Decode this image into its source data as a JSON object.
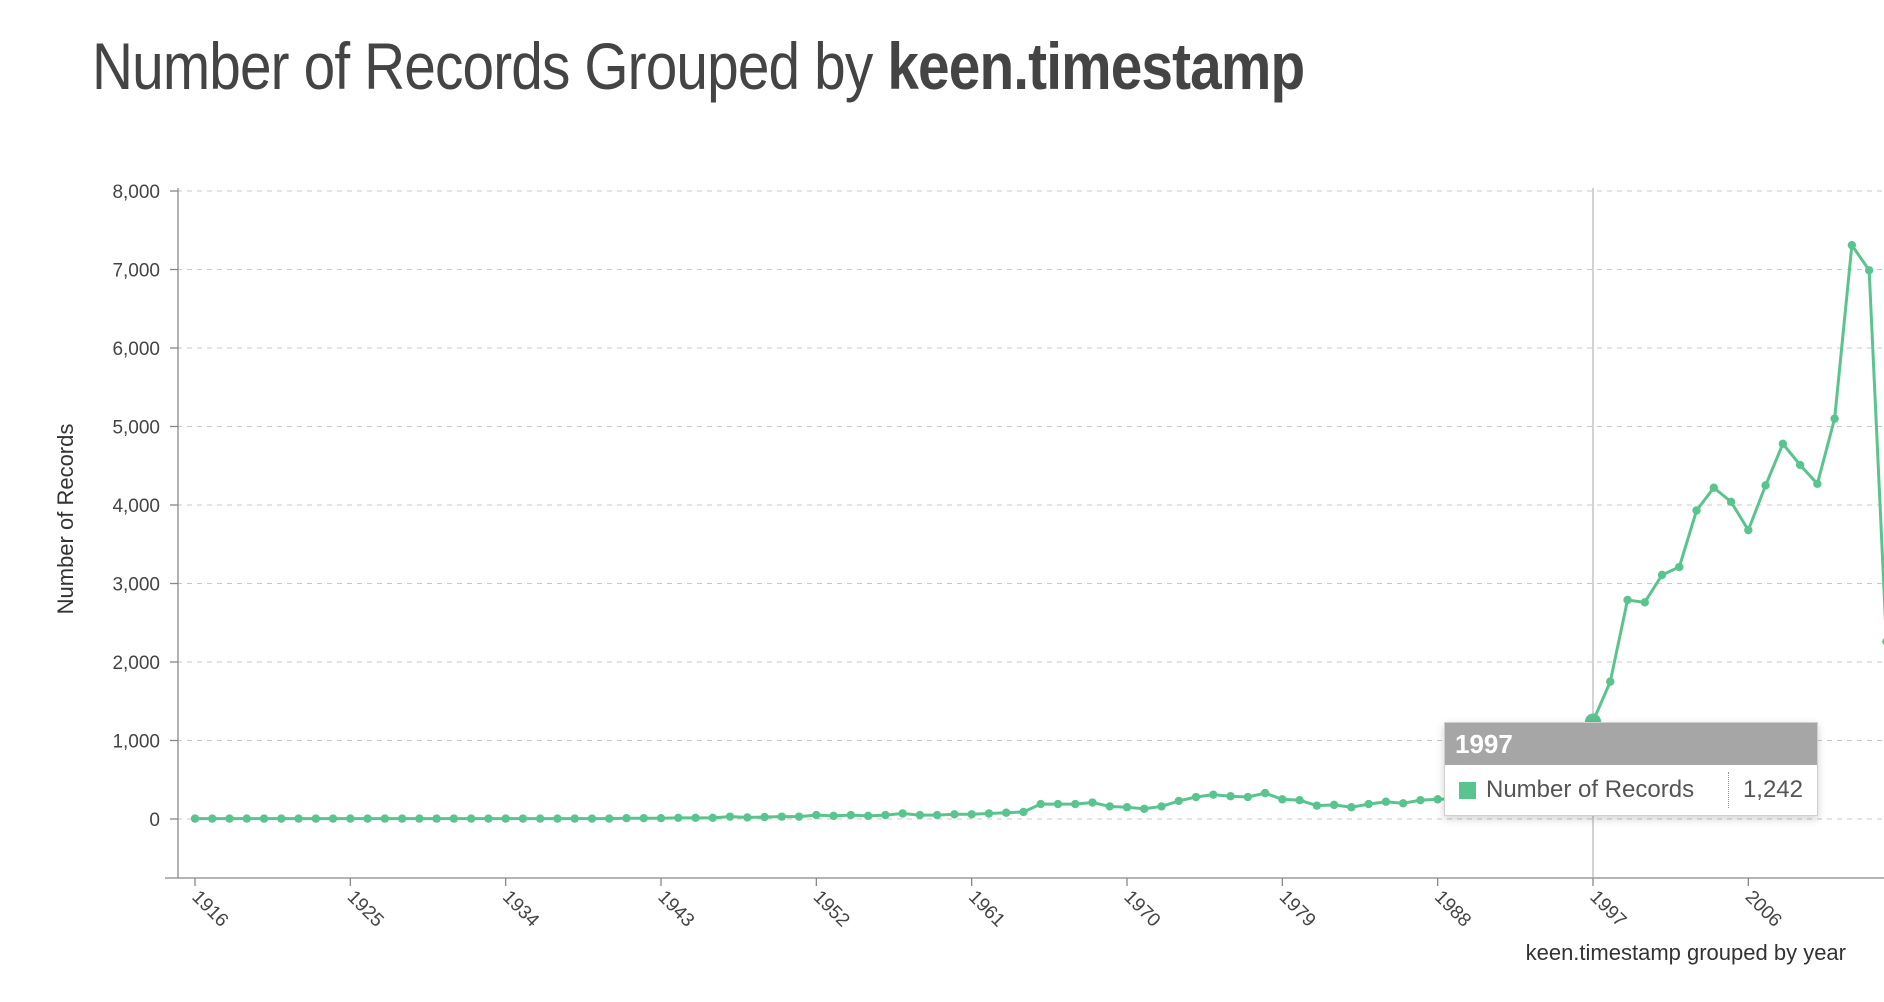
{
  "title": {
    "prefix": "Number of Records Grouped by",
    "bold": "keen.timestamp"
  },
  "colors": {
    "series": "#5ac48e",
    "text": "#444444",
    "tooltip_header": "#a6a6a6"
  },
  "tooltip": {
    "year": "1997",
    "label": "Number of Records",
    "value": "1,242"
  },
  "chart_data": {
    "type": "line",
    "title": "Number of Records Grouped by keen.timestamp",
    "xlabel": "keen.timestamp grouped by year",
    "ylabel": "Number of Records",
    "xlim": [
      1915,
      2015
    ],
    "ylim": [
      -700,
      8000
    ],
    "grid": true,
    "legend": "none",
    "x_ticks": [
      "1916",
      "1925",
      "1934",
      "1943",
      "1952",
      "1961",
      "1970",
      "1979",
      "1988",
      "1997",
      "2006"
    ],
    "y_ticks": [
      "0",
      "1,000",
      "2,000",
      "3,000",
      "4,000",
      "5,000",
      "6,000",
      "7,000",
      "8,000"
    ],
    "y_tick_values": [
      0,
      1000,
      2000,
      3000,
      4000,
      5000,
      6000,
      7000,
      8000
    ],
    "highlight": {
      "x": 1997,
      "y": 1242
    },
    "series": [
      {
        "name": "Number of Records",
        "x": [
          1916,
          1917,
          1918,
          1919,
          1920,
          1921,
          1922,
          1923,
          1924,
          1925,
          1926,
          1927,
          1928,
          1929,
          1930,
          1931,
          1932,
          1933,
          1934,
          1935,
          1936,
          1937,
          1938,
          1939,
          1940,
          1941,
          1942,
          1943,
          1944,
          1945,
          1946,
          1947,
          1948,
          1949,
          1950,
          1951,
          1952,
          1953,
          1954,
          1955,
          1956,
          1957,
          1958,
          1959,
          1960,
          1961,
          1962,
          1963,
          1964,
          1965,
          1966,
          1967,
          1968,
          1969,
          1970,
          1971,
          1972,
          1973,
          1974,
          1975,
          1976,
          1977,
          1978,
          1979,
          1980,
          1981,
          1982,
          1983,
          1984,
          1985,
          1986,
          1987,
          1988,
          1989,
          1990,
          1991,
          1992,
          1993,
          1994,
          1995,
          1996,
          1997,
          1998,
          1999,
          2000,
          2001,
          2002,
          2003,
          2004,
          2005,
          2006,
          2007,
          2008,
          2009,
          2010,
          2011,
          2012,
          2013,
          2014
        ],
        "values": [
          5,
          5,
          5,
          5,
          5,
          5,
          5,
          5,
          5,
          5,
          5,
          5,
          5,
          5,
          5,
          5,
          5,
          5,
          5,
          5,
          5,
          5,
          5,
          5,
          5,
          10,
          10,
          10,
          15,
          15,
          15,
          30,
          20,
          25,
          30,
          30,
          50,
          40,
          50,
          40,
          50,
          70,
          50,
          50,
          60,
          60,
          70,
          80,
          90,
          190,
          190,
          190,
          210,
          160,
          150,
          130,
          160,
          230,
          280,
          310,
          290,
          280,
          330,
          250,
          240,
          170,
          180,
          150,
          190,
          220,
          200,
          240,
          250,
          260,
          270,
          290,
          400,
          600,
          1060,
          820,
          1120,
          1242,
          1750,
          2790,
          2760,
          3110,
          3210,
          3930,
          4220,
          4040,
          3680,
          4250,
          4780,
          4510,
          4270,
          5100,
          7310,
          6990,
          2260
        ]
      }
    ]
  }
}
